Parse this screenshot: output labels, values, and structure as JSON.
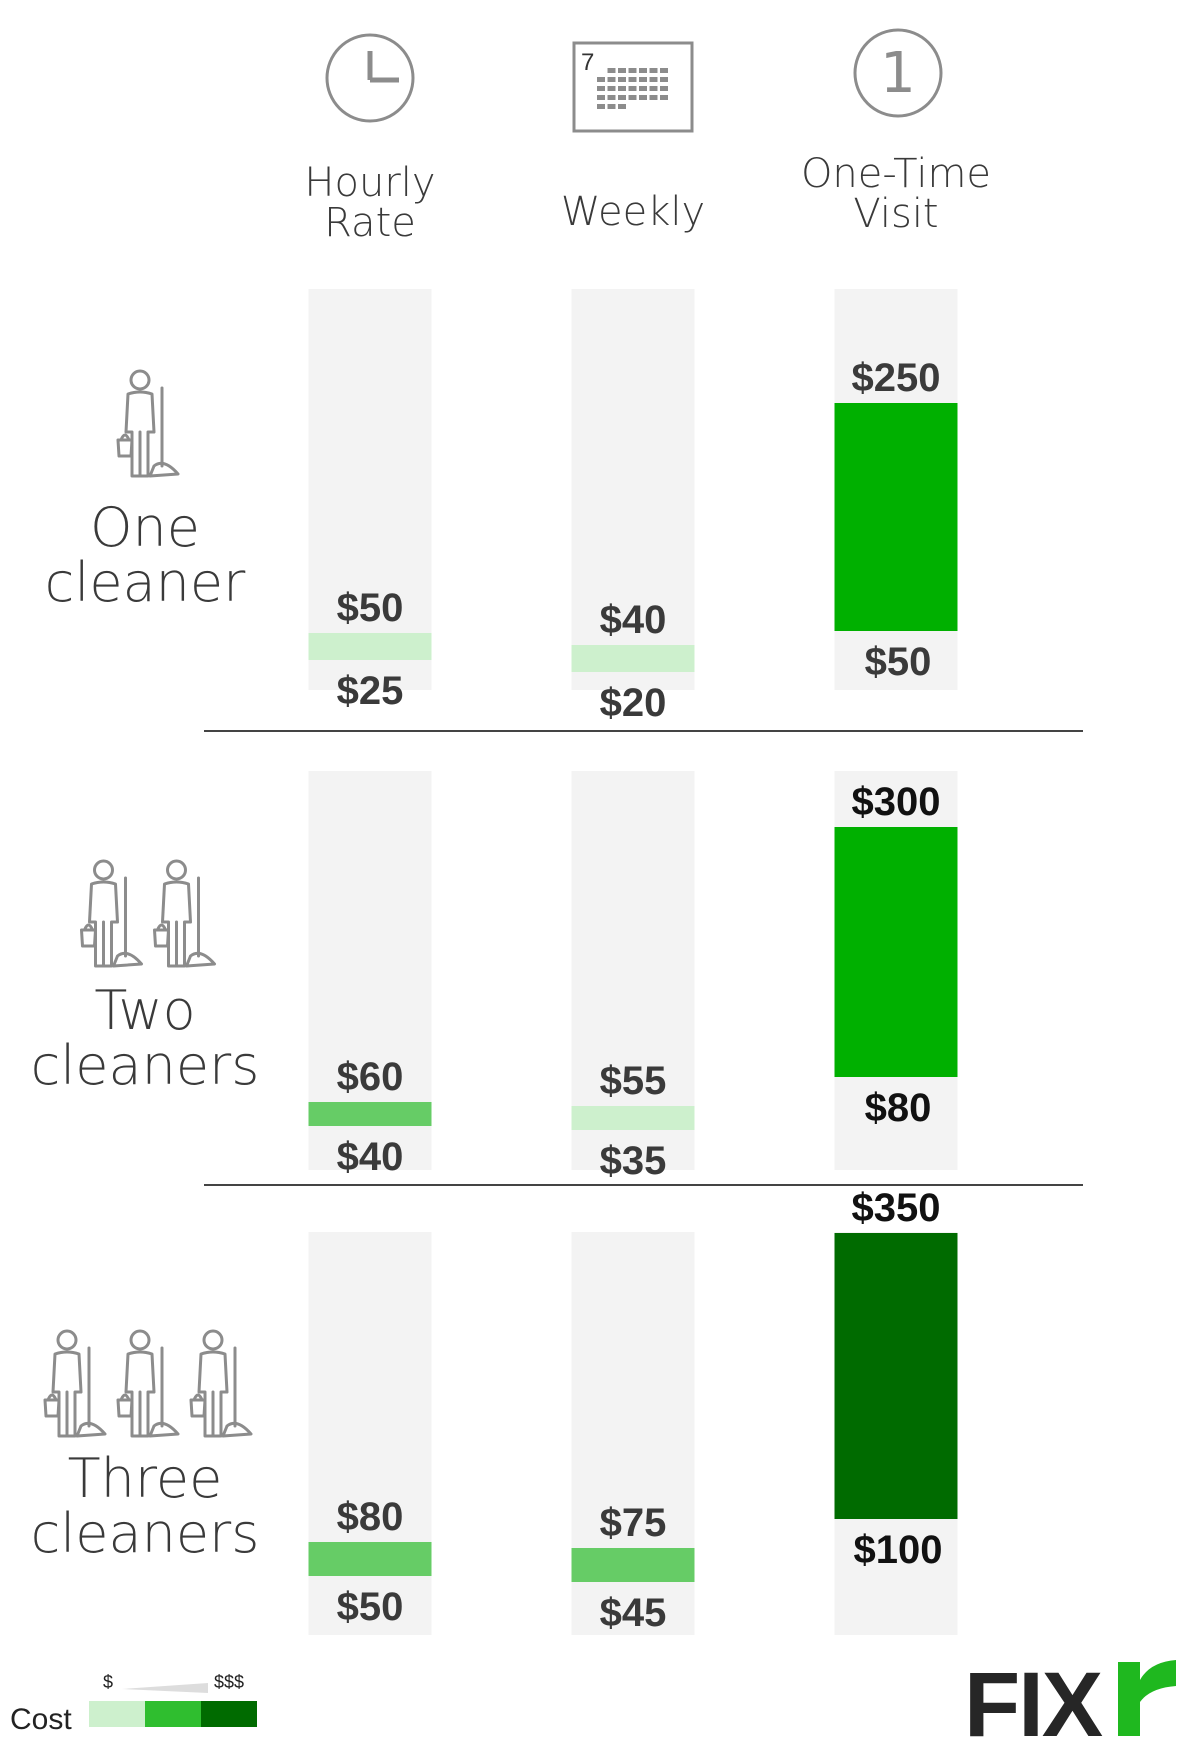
{
  "chart_data": {
    "type": "bar",
    "subtype": "floating-range",
    "columns": [
      "Hourly Rate",
      "Weekly",
      "One-Time Visit"
    ],
    "rows": [
      "One cleaner",
      "Two cleaners",
      "Three cleaners"
    ],
    "series": [
      {
        "row": "One cleaner",
        "ranges": [
          {
            "column": "Hourly Rate",
            "low": 25,
            "high": 50,
            "low_label": "$25",
            "high_label": "$50",
            "cost_level": 1
          },
          {
            "column": "Weekly",
            "low": 20,
            "high": 40,
            "low_label": "$20",
            "high_label": "$40",
            "cost_level": 1
          },
          {
            "column": "One-Time Visit",
            "low": 50,
            "high": 250,
            "low_label": "$50",
            "high_label": "$250",
            "cost_level": 2
          }
        ]
      },
      {
        "row": "Two cleaners",
        "ranges": [
          {
            "column": "Hourly Rate",
            "low": 40,
            "high": 60,
            "low_label": "$40",
            "high_label": "$60",
            "cost_level": 1.5
          },
          {
            "column": "Weekly",
            "low": 35,
            "high": 55,
            "low_label": "$35",
            "high_label": "$55",
            "cost_level": 1
          },
          {
            "column": "One-Time Visit",
            "low": 80,
            "high": 300,
            "low_label": "$80",
            "high_label": "$300",
            "cost_level": 2
          }
        ]
      },
      {
        "row": "Three cleaners",
        "ranges": [
          {
            "column": "Hourly Rate",
            "low": 50,
            "high": 80,
            "low_label": "$50",
            "high_label": "$80",
            "cost_level": 1.5
          },
          {
            "column": "Weekly",
            "low": 45,
            "high": 75,
            "low_label": "$45",
            "high_label": "$75",
            "cost_level": 1.5
          },
          {
            "column": "One-Time Visit",
            "low": 100,
            "high": 350,
            "low_label": "$100",
            "high_label": "$350",
            "cost_level": 3
          }
        ]
      }
    ],
    "column_heads": [
      {
        "lines": [
          "Hourly",
          "Rate"
        ],
        "icon": "clock-icon"
      },
      {
        "lines": [
          "Weekly"
        ],
        "icon": "calendar-icon",
        "icon_text": "7"
      },
      {
        "lines": [
          "One-Time",
          "Visit"
        ],
        "icon": "number-one-icon",
        "icon_text": "1"
      }
    ],
    "row_heads": [
      {
        "lines": [
          "One",
          "cleaner"
        ],
        "icon": "cleaner-icon",
        "count": 1
      },
      {
        "lines": [
          "Two",
          "cleaners"
        ],
        "icon": "cleaner-icon",
        "count": 2
      },
      {
        "lines": [
          "Three",
          "cleaners"
        ],
        "icon": "cleaner-icon",
        "count": 3
      }
    ],
    "legend": {
      "title": "Cost",
      "low_label": "$",
      "high_label": "$$$",
      "colors": [
        "#cdf0cd",
        "#2fbe2f",
        "#006b00"
      ]
    },
    "colors": {
      "track": "#f3f3f3",
      "level_1": "#cdf0cd",
      "level_1_5": "#66cc66",
      "level_2": "#00b000",
      "level_3": "#006b00",
      "text": "#3a3a3a",
      "icon": "#8c8c8c"
    }
  },
  "brand": {
    "logo_text": "FIXr",
    "logo_main": "FIX",
    "logo_tail": "r",
    "accent": "#1fb81f",
    "dark": "#262626"
  }
}
